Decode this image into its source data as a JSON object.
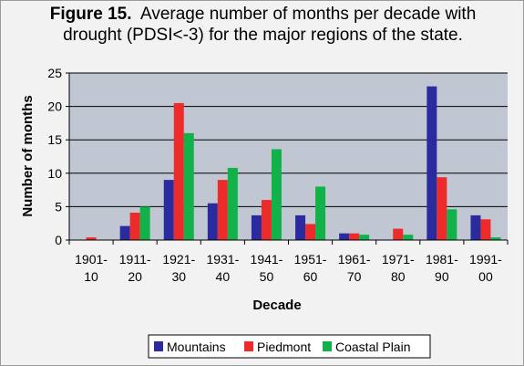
{
  "chart_data": {
    "type": "bar",
    "title_bold": "Figure 15.",
    "title_line1": "Average number of months per decade with",
    "title_line2": "drought (PDSI<-3) for the major regions of the state.",
    "xlabel": "Decade",
    "ylabel": "Number of months",
    "ylim": [
      0,
      25
    ],
    "yticks": [
      0,
      5,
      10,
      15,
      20,
      25
    ],
    "grid": true,
    "legend_position": "bottom",
    "categories": [
      [
        "1901-",
        "10"
      ],
      [
        "1911-",
        "20"
      ],
      [
        "1921-",
        "30"
      ],
      [
        "1931-",
        "40"
      ],
      [
        "1941-",
        "50"
      ],
      [
        "1951-",
        "60"
      ],
      [
        "1961-",
        "70"
      ],
      [
        "1971-",
        "80"
      ],
      [
        "1981-",
        "90"
      ],
      [
        "1991-",
        "00"
      ]
    ],
    "series": [
      {
        "name": "Mountains",
        "color": "#2b2ba0",
        "values": [
          0,
          2.1,
          9.0,
          5.5,
          3.7,
          3.7,
          1.0,
          0,
          23.0,
          3.7
        ]
      },
      {
        "name": "Piedmont",
        "color": "#ee2b2b",
        "values": [
          0.4,
          4.1,
          20.5,
          9.0,
          6.0,
          2.4,
          1.0,
          1.7,
          9.4,
          3.1
        ]
      },
      {
        "name": "Coastal Plain",
        "color": "#12b24b",
        "values": [
          0,
          5.0,
          16.0,
          10.8,
          13.6,
          8.0,
          0.8,
          0.8,
          4.6,
          0.4
        ]
      }
    ]
  }
}
